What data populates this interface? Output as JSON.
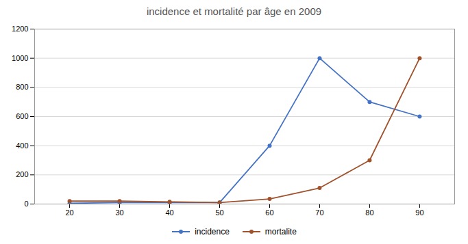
{
  "chart_data": {
    "type": "line",
    "title": "incidence et mortalité par âge en 2009",
    "x": [
      20,
      30,
      40,
      50,
      60,
      70,
      80,
      90
    ],
    "series": [
      {
        "name": "incidence",
        "color": "#4472C4",
        "values": [
          5,
          10,
          10,
          10,
          400,
          1000,
          700,
          600
        ]
      },
      {
        "name": "mortalite",
        "color": "#A0522D",
        "values": [
          20,
          20,
          15,
          10,
          35,
          110,
          300,
          1000
        ]
      }
    ],
    "xlim": [
      13,
      97
    ],
    "ylim": [
      0,
      1200
    ],
    "xticks": [
      20,
      30,
      40,
      50,
      60,
      70,
      80,
      90
    ],
    "yticks": [
      0,
      200,
      400,
      600,
      800,
      1000,
      1200
    ],
    "grid": "y",
    "marker": "circle",
    "legend": "bottom"
  }
}
